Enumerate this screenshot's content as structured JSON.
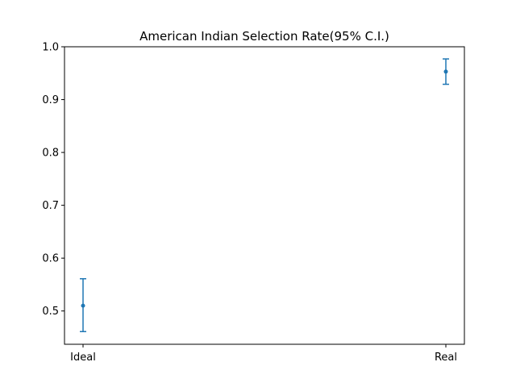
{
  "chart_data": {
    "type": "scatter",
    "title": "American Indian Selection Rate(95% C.I.)",
    "xlabel": "",
    "ylabel": "",
    "categories": [
      "Ideal",
      "Real"
    ],
    "points": [
      {
        "category": "Ideal",
        "value": 0.51,
        "ci_low": 0.461,
        "ci_high": 0.561
      },
      {
        "category": "Real",
        "value": 0.953,
        "ci_low": 0.929,
        "ci_high": 0.977
      }
    ],
    "ylim": [
      0.437,
      1.0
    ],
    "yticks": [
      "0.5",
      "0.6",
      "0.7",
      "0.8",
      "0.9",
      "1.0"
    ],
    "grid": false,
    "legend": "none",
    "color": "#1f77b4"
  }
}
